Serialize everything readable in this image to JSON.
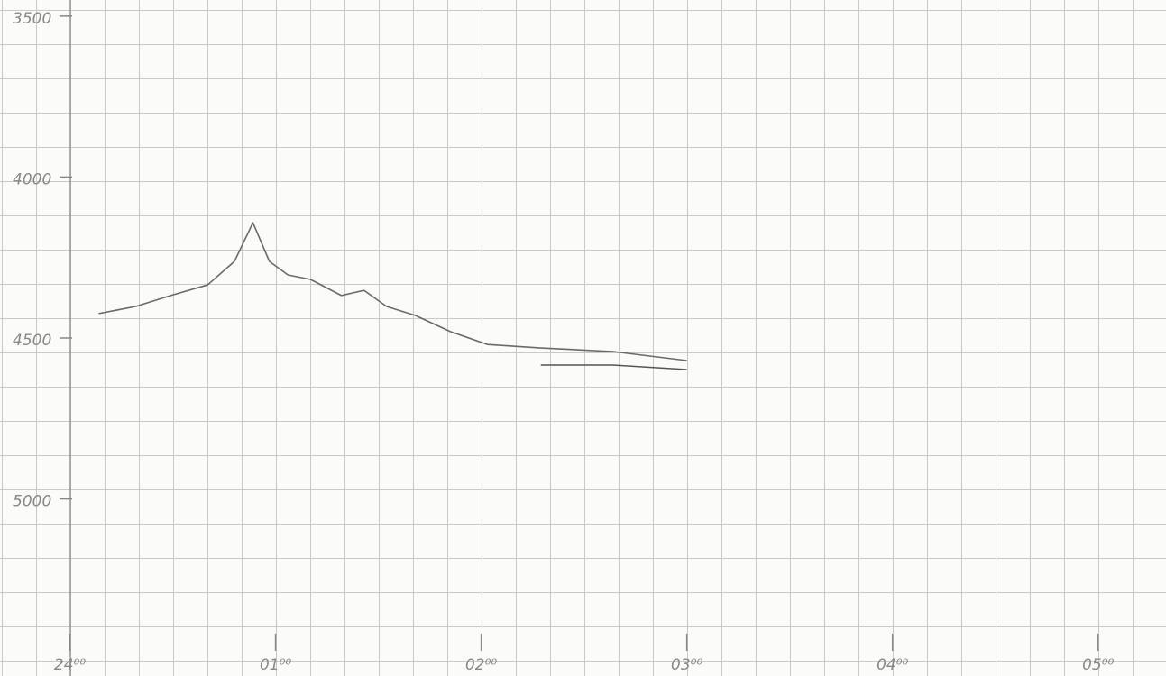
{
  "chart_data": {
    "type": "line",
    "x": [
      0.14,
      0.32,
      0.49,
      0.67,
      0.8,
      0.89,
      0.97,
      1.06,
      1.17,
      1.32,
      1.43,
      1.54,
      1.68,
      1.85,
      2.03,
      2.29,
      2.64,
      3.0
    ],
    "series": [
      {
        "color": "#6a6a6a",
        "values": [
          4424,
          4402,
          4368,
          4335,
          4262,
          4142,
          4262,
          4304,
          4318,
          4368,
          4352,
          4402,
          4430,
          4480,
          4520,
          4531,
          4542,
          4570
        ]
      },
      {
        "color": "#555555",
        "values": [
          null,
          null,
          null,
          null,
          null,
          null,
          null,
          null,
          null,
          null,
          null,
          null,
          null,
          null,
          null,
          4584,
          4584,
          4598
        ]
      }
    ],
    "xlim": [
      -0.34,
      5.33
    ],
    "xticks": [
      {
        "value": 0,
        "label": "24⁰⁰"
      },
      {
        "value": 1,
        "label": "01⁰⁰"
      },
      {
        "value": 2,
        "label": "02⁰⁰"
      },
      {
        "value": 3,
        "label": "03⁰⁰"
      },
      {
        "value": 4,
        "label": "04⁰⁰"
      },
      {
        "value": 5,
        "label": "05⁰⁰"
      }
    ],
    "ylim": [
      5550,
      3450
    ],
    "yticks": [
      3500,
      4000,
      4500,
      5000
    ]
  }
}
